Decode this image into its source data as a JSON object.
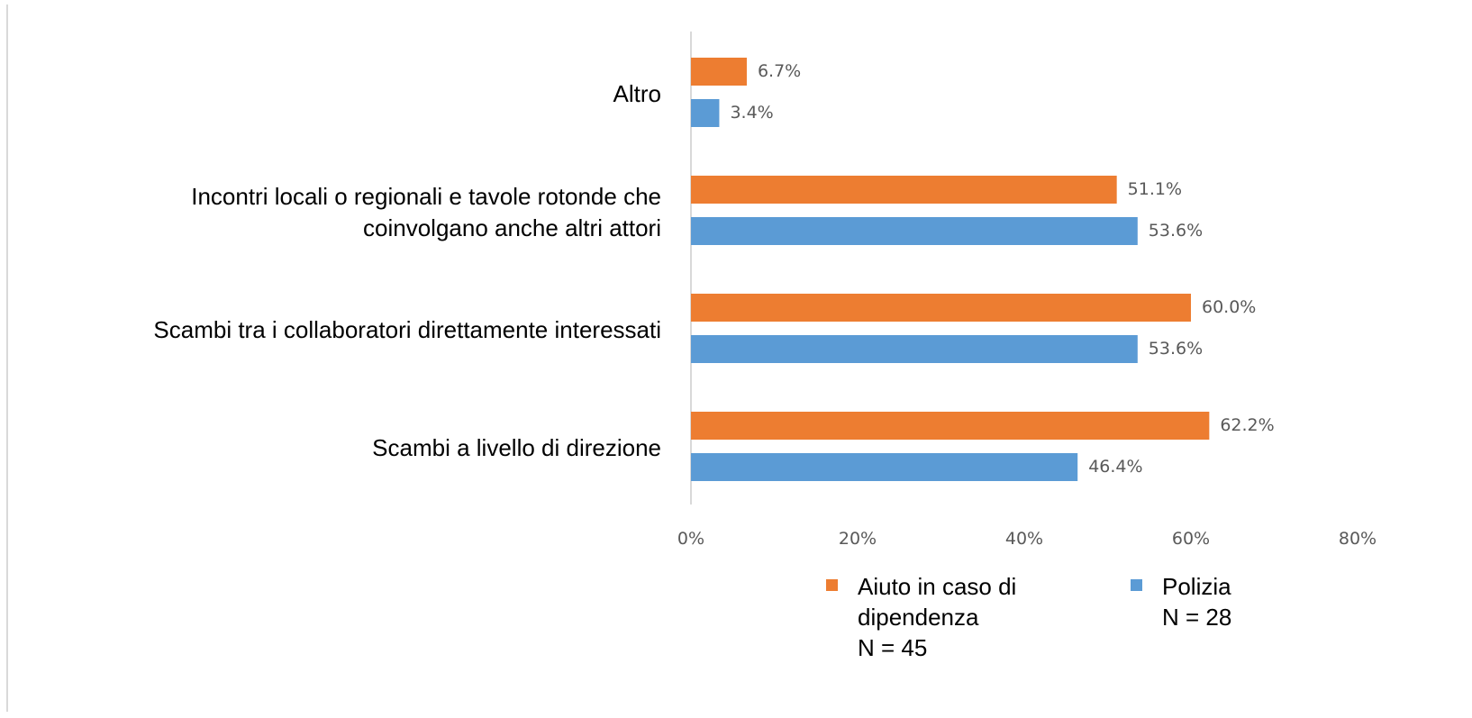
{
  "chart_data": {
    "type": "bar",
    "orientation": "horizontal",
    "categories": [
      "Altro",
      "Incontri locali o regionali e tavole rotonde che\ncoinvolgano anche altri attori",
      "Scambi tra i collaboratori direttamente interessati",
      "Scambi a livello di direzione"
    ],
    "series": [
      {
        "name": "Aiuto in caso di\ndipendenza\nN = 45",
        "color": "#ED7D31",
        "values": [
          6.7,
          51.1,
          60.0,
          62.2
        ],
        "value_labels": [
          "6.7%",
          "51.1%",
          "60.0%",
          "62.2%"
        ]
      },
      {
        "name": "Polizia\nN = 28",
        "color": "#5B9BD5",
        "values": [
          3.4,
          53.6,
          53.6,
          46.4
        ],
        "value_labels": [
          "3.4%",
          "53.6%",
          "53.6%",
          "46.4%"
        ]
      }
    ],
    "xlim": [
      0,
      80
    ],
    "xticks": [
      {
        "value": 0,
        "label": "0%"
      },
      {
        "value": 20,
        "label": "20%"
      },
      {
        "value": 40,
        "label": "40%"
      },
      {
        "value": 60,
        "label": "60%"
      },
      {
        "value": 80,
        "label": "80%"
      }
    ],
    "grid": false,
    "legend": "bottom"
  }
}
